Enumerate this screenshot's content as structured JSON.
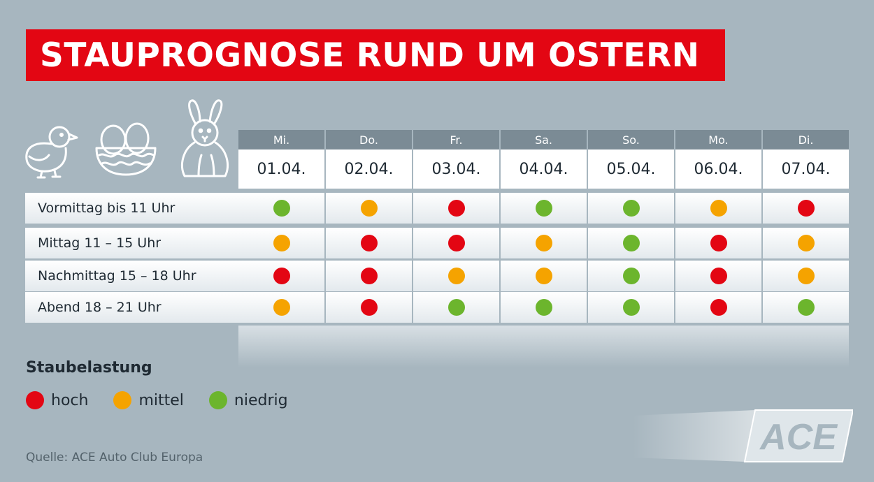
{
  "title": "STAUPROGNOSE RUND UM OSTERN",
  "days": [
    {
      "day": "Mi.",
      "date": "01.04."
    },
    {
      "day": "Do.",
      "date": "02.04."
    },
    {
      "day": "Fr.",
      "date": "03.04."
    },
    {
      "day": "Sa.",
      "date": "04.04."
    },
    {
      "day": "So.",
      "date": "05.04."
    },
    {
      "day": "Mo.",
      "date": "06.04."
    },
    {
      "day": "Di.",
      "date": "07.04."
    }
  ],
  "rows": [
    {
      "label": "Vormittag bis 11 Uhr",
      "levels": [
        "niedrig",
        "mittel",
        "hoch",
        "niedrig",
        "niedrig",
        "mittel",
        "hoch"
      ]
    },
    {
      "label": "Mittag 11 – 15 Uhr",
      "levels": [
        "mittel",
        "hoch",
        "hoch",
        "mittel",
        "niedrig",
        "hoch",
        "mittel"
      ]
    },
    {
      "label": "Nachmittag 15 – 18 Uhr",
      "levels": [
        "hoch",
        "hoch",
        "mittel",
        "mittel",
        "niedrig",
        "hoch",
        "mittel"
      ]
    },
    {
      "label": "Abend 18 – 21 Uhr",
      "levels": [
        "mittel",
        "hoch",
        "niedrig",
        "niedrig",
        "niedrig",
        "hoch",
        "niedrig"
      ]
    }
  ],
  "legend": {
    "title": "Staubelastung",
    "items": [
      {
        "key": "hoch",
        "label": "hoch",
        "color": "#e30613"
      },
      {
        "key": "mittel",
        "label": "mittel",
        "color": "#f5a300"
      },
      {
        "key": "niedrig",
        "label": "niedrig",
        "color": "#6cb52d"
      }
    ]
  },
  "icons": [
    "chick-icon",
    "eggs-basket-icon",
    "bunny-icon"
  ],
  "logo_text": "ACE",
  "source": "Quelle: ACE Auto Club Europa",
  "colors": {
    "background": "#a7b6bf",
    "title_bg": "#e30613",
    "header_bg": "#7b8b95"
  }
}
